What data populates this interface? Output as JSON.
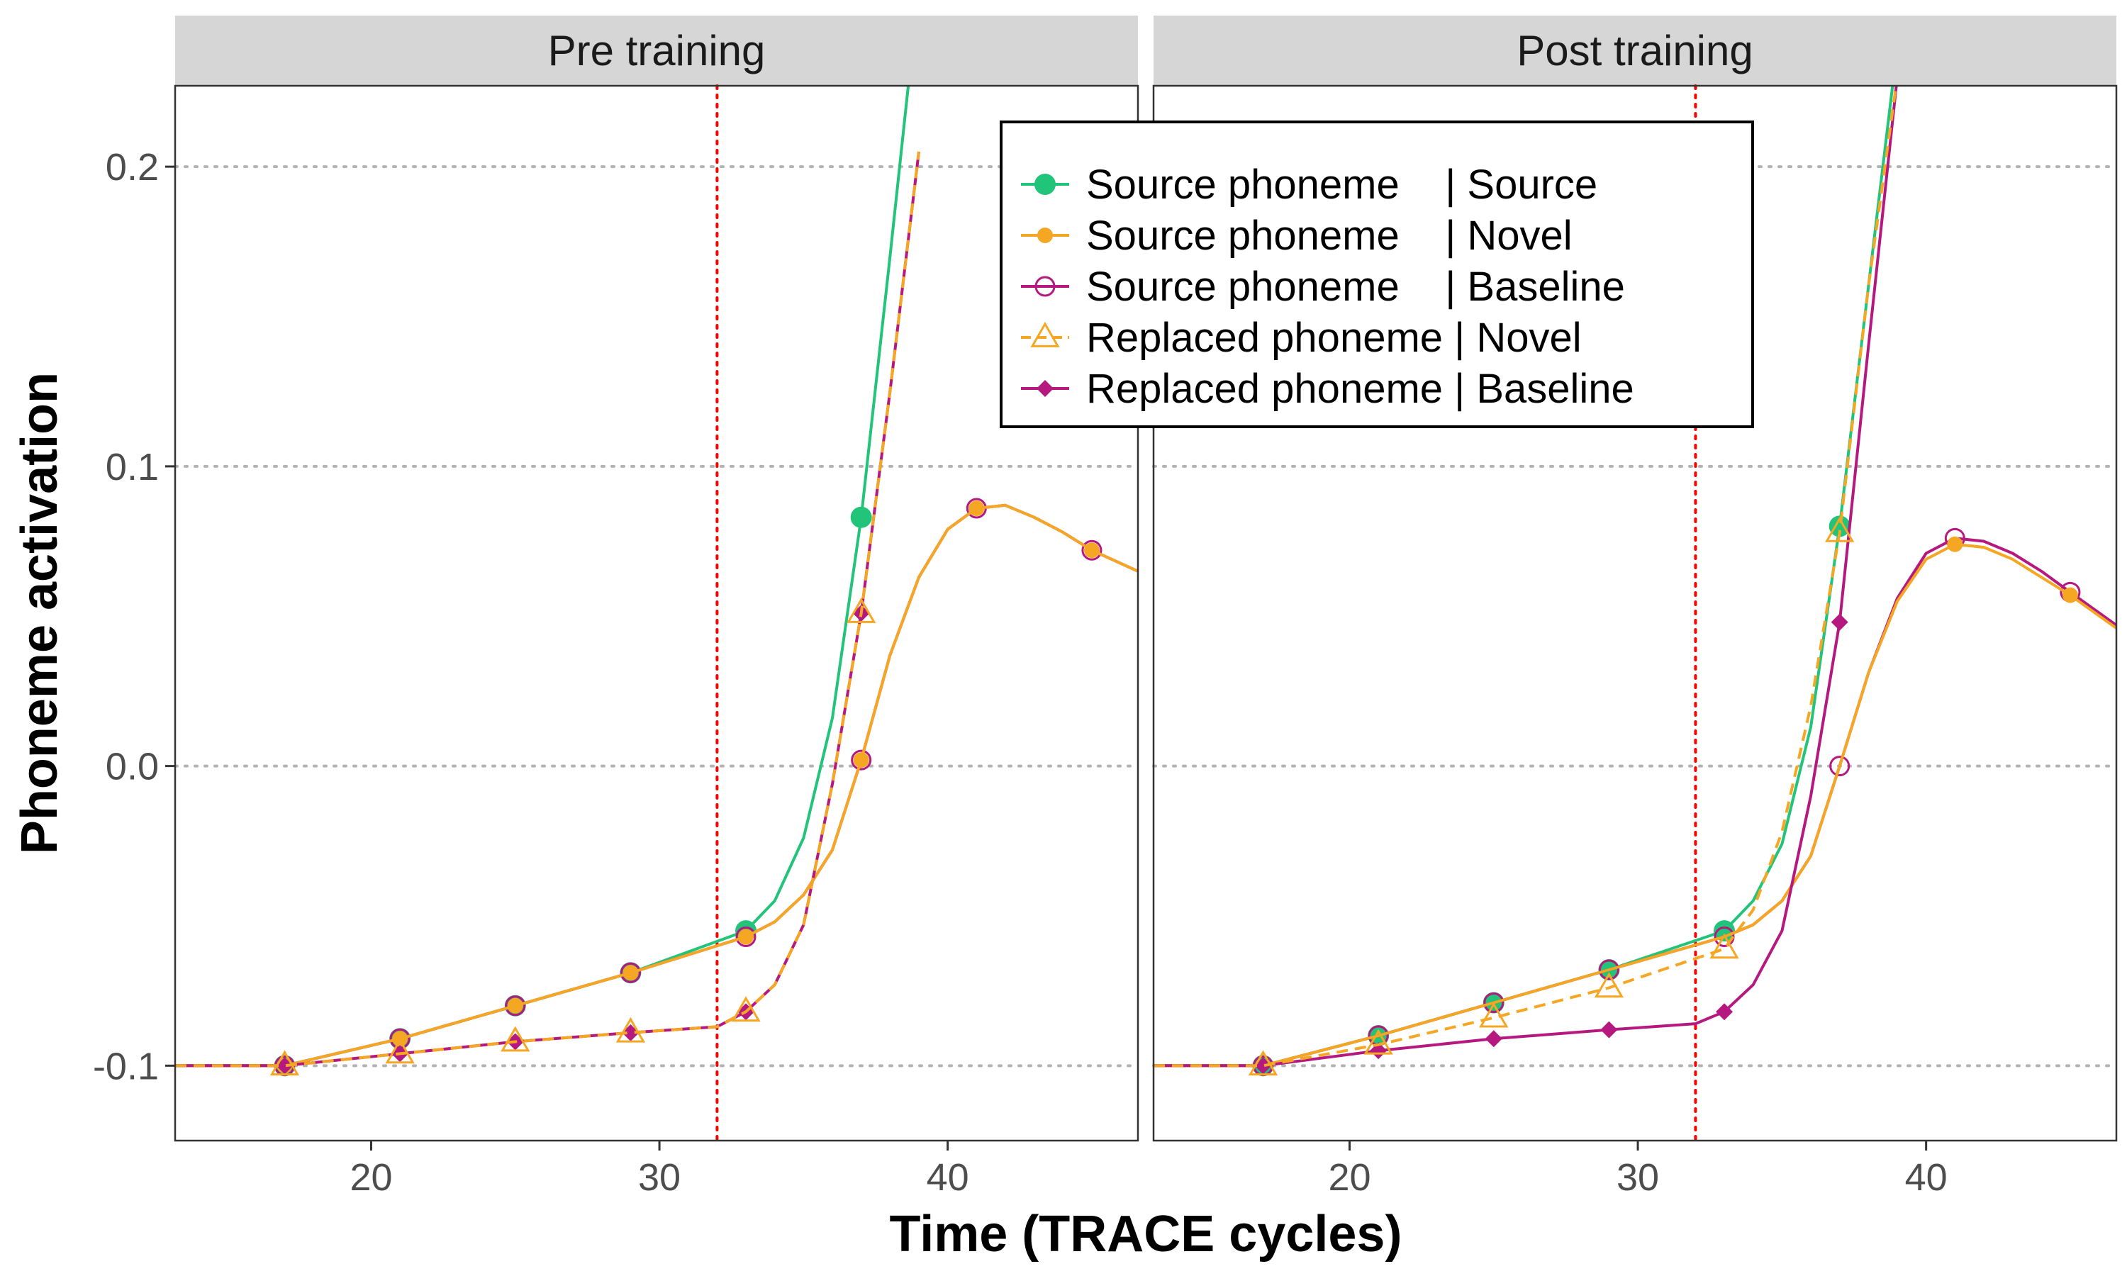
{
  "chart_data": {
    "type": "line",
    "xlabel": "Time (TRACE cycles)",
    "ylabel": "Phoneme activation",
    "xlim": [
      13.2,
      46.6
    ],
    "ylim": [
      -0.125,
      0.227
    ],
    "x_ticks": [
      20,
      30,
      40
    ],
    "y_ticks": [
      -0.1,
      0.0,
      0.1,
      0.2
    ],
    "x_tick_labels": [
      "20",
      "30",
      "40"
    ],
    "y_tick_labels": [
      "-0.1",
      "0.0",
      "0.1",
      "0.2"
    ],
    "grid": "horizontal dotted at y ticks",
    "reference_line": {
      "x": 32,
      "style": "dotted",
      "color": "#ff0000"
    },
    "legend_position": "top-right",
    "legend": [
      {
        "key": "src_src",
        "label": "Source phoneme    | Source"
      },
      {
        "key": "src_nov",
        "label": "Source phoneme    | Novel"
      },
      {
        "key": "src_base",
        "label": "Source phoneme    | Baseline"
      },
      {
        "key": "rep_nov",
        "label": "Replaced phoneme | Novel"
      },
      {
        "key": "rep_base",
        "label": "Replaced phoneme | Baseline"
      }
    ],
    "styles": {
      "src_src": {
        "color": "#22c47a",
        "marker": "filled-circle",
        "dash": "solid"
      },
      "src_nov": {
        "color": "#f5a623",
        "marker": "filled-circle-small",
        "dash": "solid"
      },
      "src_base": {
        "color": "#b5197f",
        "marker": "open-circle",
        "dash": "solid"
      },
      "rep_nov": {
        "color": "#f5a623",
        "marker": "open-triangle",
        "dash": "dashed"
      },
      "rep_base": {
        "color": "#b5197f",
        "marker": "filled-diamond",
        "dash": "solid"
      }
    },
    "draw_order": [
      "src_src",
      "src_base",
      "src_nov",
      "rep_base",
      "rep_nov"
    ],
    "panels": [
      {
        "title": "Pre training",
        "series": [
          {
            "key": "src_src",
            "x": [
              13.2,
              17,
              21,
              25,
              29,
              33,
              34,
              35,
              36,
              37,
              38,
              39
            ],
            "y": [
              -0.1,
              -0.1,
              -0.091,
              -0.08,
              -0.069,
              -0.055,
              -0.045,
              -0.024,
              0.016,
              0.083,
              0.17,
              0.26
            ],
            "marker_x": [
              17,
              21,
              25,
              29,
              33,
              37
            ]
          },
          {
            "key": "src_base",
            "x": [
              13.2,
              17,
              21,
              25,
              29,
              33,
              34,
              35,
              36,
              37,
              38,
              39,
              40,
              41,
              42,
              43,
              44,
              45,
              46.6
            ],
            "y": [
              -0.1,
              -0.1,
              -0.091,
              -0.08,
              -0.069,
              -0.057,
              -0.052,
              -0.043,
              -0.028,
              0.002,
              0.037,
              0.063,
              0.079,
              0.086,
              0.087,
              0.083,
              0.078,
              0.072,
              0.065
            ],
            "marker_x": [
              17,
              21,
              25,
              29,
              33,
              37,
              41,
              45
            ]
          },
          {
            "key": "src_nov",
            "x": [
              13.2,
              17,
              21,
              25,
              29,
              33,
              34,
              35,
              36,
              37,
              38,
              39,
              40,
              41,
              42,
              43,
              44,
              45,
              46.6
            ],
            "y": [
              -0.1,
              -0.1,
              -0.091,
              -0.08,
              -0.069,
              -0.057,
              -0.052,
              -0.043,
              -0.028,
              0.002,
              0.037,
              0.063,
              0.079,
              0.086,
              0.087,
              0.083,
              0.078,
              0.072,
              0.065
            ],
            "marker_x": [
              17,
              21,
              25,
              29,
              33,
              37,
              41,
              45
            ]
          },
          {
            "key": "rep_base",
            "x": [
              13.2,
              17,
              21,
              25,
              29,
              32,
              33,
              34,
              35,
              36,
              37,
              38,
              39
            ],
            "y": [
              -0.1,
              -0.1,
              -0.096,
              -0.092,
              -0.089,
              -0.087,
              -0.082,
              -0.073,
              -0.053,
              -0.006,
              0.051,
              0.125,
              0.205
            ],
            "marker_x": [
              17,
              21,
              25,
              29,
              33,
              37
            ]
          },
          {
            "key": "rep_nov",
            "x": [
              13.2,
              17,
              21,
              25,
              29,
              32,
              33,
              34,
              35,
              36,
              37,
              38,
              39
            ],
            "y": [
              -0.1,
              -0.1,
              -0.096,
              -0.092,
              -0.089,
              -0.087,
              -0.082,
              -0.073,
              -0.053,
              -0.006,
              0.051,
              0.125,
              0.205
            ],
            "marker_x": [
              17,
              21,
              25,
              29,
              33,
              37
            ]
          }
        ]
      },
      {
        "title": "Post training",
        "series": [
          {
            "key": "src_src",
            "x": [
              13.2,
              17,
              21,
              25,
              29,
              33,
              34,
              35,
              36,
              37,
              38,
              39
            ],
            "y": [
              -0.1,
              -0.1,
              -0.09,
              -0.079,
              -0.068,
              -0.055,
              -0.045,
              -0.026,
              0.013,
              0.08,
              0.16,
              0.24
            ],
            "marker_x": [
              17,
              21,
              25,
              29,
              33,
              37
            ]
          },
          {
            "key": "src_base",
            "x": [
              13.2,
              17,
              21,
              25,
              29,
              33,
              34,
              35,
              36,
              37,
              38,
              39,
              40,
              41,
              42,
              43,
              44,
              45,
              46.6
            ],
            "y": [
              -0.1,
              -0.1,
              -0.09,
              -0.079,
              -0.068,
              -0.057,
              -0.053,
              -0.045,
              -0.03,
              0.0,
              0.031,
              0.056,
              0.071,
              0.076,
              0.075,
              0.071,
              0.065,
              0.058,
              0.047
            ],
            "marker_x": [
              17,
              21,
              25,
              29,
              33,
              37,
              41,
              45
            ]
          },
          {
            "key": "src_nov",
            "x": [
              13.2,
              17,
              21,
              25,
              29,
              33,
              34,
              35,
              36,
              37,
              38,
              39,
              40,
              41,
              42,
              43,
              44,
              45,
              46.6
            ],
            "y": [
              -0.1,
              -0.1,
              -0.09,
              -0.079,
              -0.068,
              -0.057,
              -0.053,
              -0.045,
              -0.03,
              0.0,
              0.031,
              0.055,
              0.069,
              0.074,
              0.073,
              0.069,
              0.063,
              0.057,
              0.046
            ],
            "marker_x": [
              41,
              45
            ]
          },
          {
            "key": "rep_base",
            "x": [
              13.2,
              17,
              21,
              25,
              29,
              32,
              33,
              34,
              35,
              36,
              37,
              38,
              39
            ],
            "y": [
              -0.1,
              -0.1,
              -0.095,
              -0.091,
              -0.088,
              -0.086,
              -0.082,
              -0.073,
              -0.055,
              -0.01,
              0.048,
              0.14,
              0.23
            ],
            "marker_x": [
              17,
              21,
              25,
              29,
              33,
              37
            ]
          },
          {
            "key": "rep_nov",
            "x": [
              13.2,
              17,
              21,
              25,
              29,
              33,
              34,
              35,
              36,
              37,
              38,
              39
            ],
            "y": [
              -0.1,
              -0.1,
              -0.093,
              -0.084,
              -0.074,
              -0.061,
              -0.048,
              -0.022,
              0.02,
              0.078,
              0.16,
              0.23
            ],
            "marker_x": [
              17,
              21,
              25,
              29,
              33,
              37
            ]
          }
        ]
      }
    ]
  }
}
